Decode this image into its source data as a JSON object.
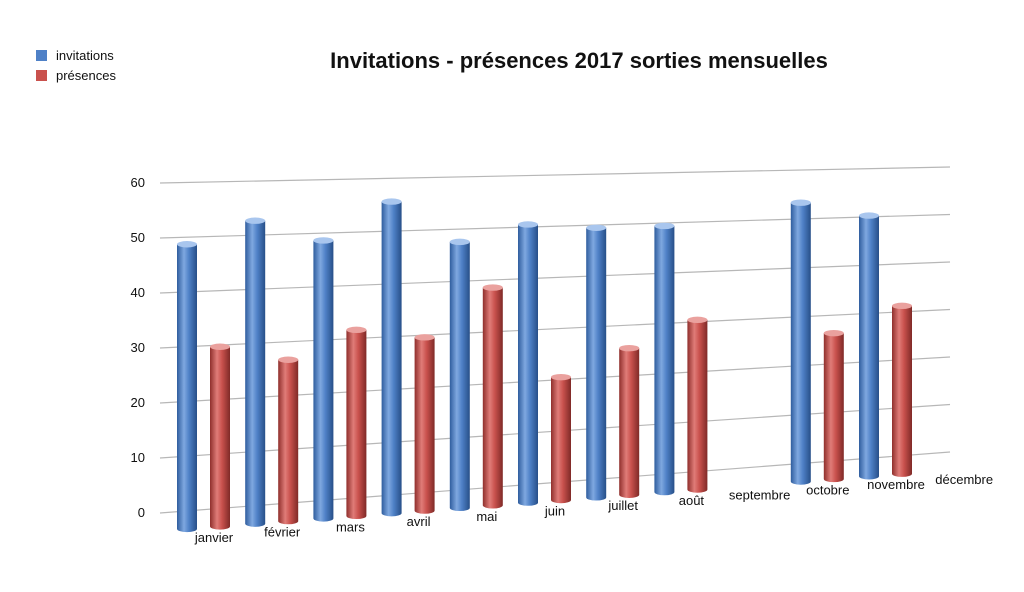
{
  "chart_data": {
    "type": "bar",
    "title": "Invitations - présences 2017 sorties mensuelles",
    "categories": [
      "janvier",
      "février",
      "mars",
      "avril",
      "mai",
      "juin",
      "juillet",
      "août",
      "septembre",
      "octobre",
      "novembre",
      "décembre"
    ],
    "series": [
      {
        "name": "invitations",
        "color": "#4f81c7",
        "values": [
          52,
          56,
          52,
          59,
          51,
          54,
          53,
          53,
          null,
          57,
          54,
          null
        ]
      },
      {
        "name": "présences",
        "color": "#c9514d",
        "values": [
          33,
          30,
          35,
          33,
          42,
          24,
          29,
          34,
          null,
          30,
          35,
          null
        ]
      }
    ],
    "yticks": [
      0,
      10,
      20,
      30,
      40,
      50,
      60
    ],
    "ylim": [
      0,
      60
    ],
    "grid": true,
    "legend_position": "top-left"
  }
}
